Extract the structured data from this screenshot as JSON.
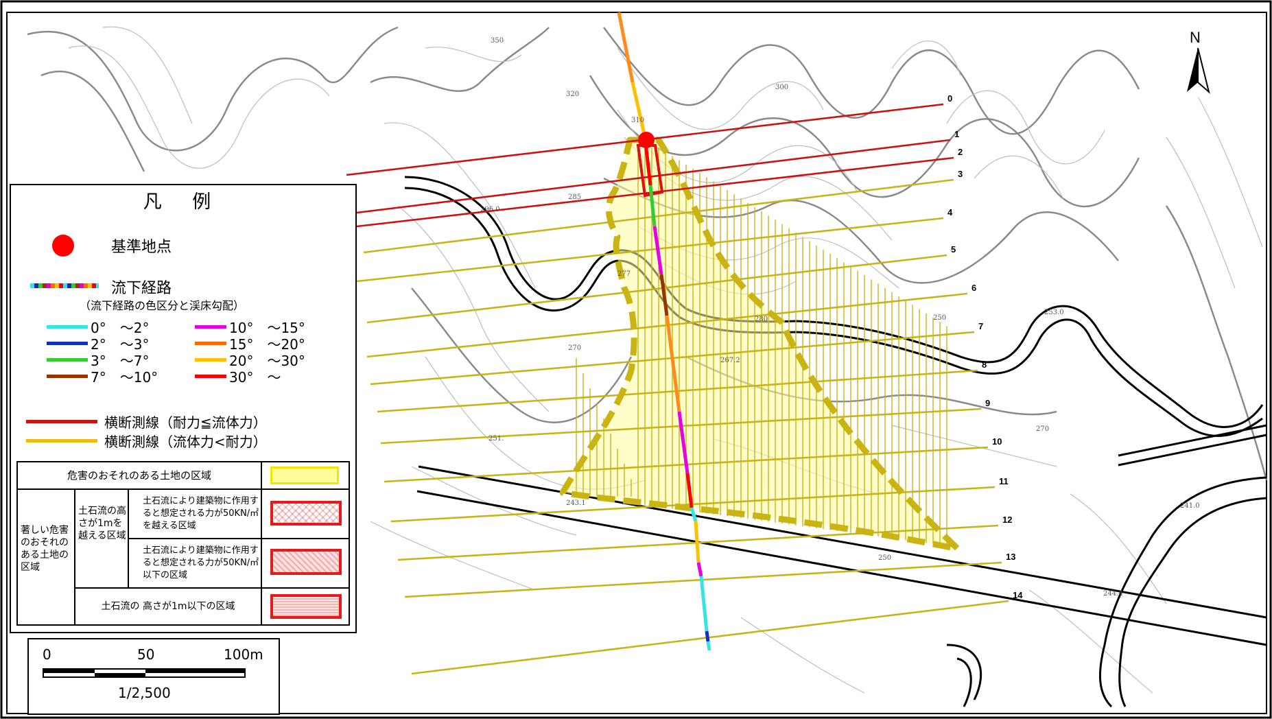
{
  "legend": {
    "title": "凡 例",
    "base_point": "基準地点",
    "flow_path": "流下経路",
    "flow_path_note": "（流下経路の色区分と渓床勾配）",
    "gradients": [
      {
        "label": "0°　～2°",
        "color": "#33e5e5"
      },
      {
        "label": "2°　～3°",
        "color": "#1030c0"
      },
      {
        "label": "3°　～7°",
        "color": "#33cc33"
      },
      {
        "label": "7°　～10°",
        "color": "#993300"
      },
      {
        "label": "10°　～15°",
        "color": "#e600e6"
      },
      {
        "label": "15°　～20°",
        "color": "#ff6a00"
      },
      {
        "label": "20°　～30°",
        "color": "#ffc000"
      },
      {
        "label": "30°　～",
        "color": "#ff0000"
      }
    ],
    "cross_section_red": "横断測線（耐力≦流体力）",
    "cross_section_yellow": "横断測線（流体力<耐力）",
    "table": {
      "hazard_area": "危害のおそれのある土地の区域",
      "severe_area": "著しい危害のおそれのある土地の区域",
      "over_1m": "土石流の高さが1mを越える区域",
      "force_over": "土石流により建築物に作用すると想定される力が50KN/㎡を越える区域",
      "force_under": "土石流により建築物に作用すると想定される力が50KN/㎡以下の区域",
      "under_1m": "土石流の 高さが1m以下の区域"
    }
  },
  "scale": {
    "left": "0",
    "mid": "50",
    "right": "100m",
    "ratio": "1/2,500"
  },
  "north": "N",
  "section_numbers": [
    "0",
    "1",
    "2",
    "3",
    "4",
    "5",
    "6",
    "7",
    "8",
    "9",
    "10",
    "11",
    "12",
    "13",
    "14"
  ],
  "contour_labels": [
    "350",
    "320",
    "310",
    "300",
    "296.0",
    "285",
    "277",
    "280",
    "270",
    "267.2",
    "253.0",
    "250",
    "270",
    "251.",
    "243.1",
    "250",
    "244.4",
    "241.0"
  ],
  "colors": {
    "red_line": "#cc1111",
    "yellow_line": "#c8b418",
    "hazard_fill": "#fffb9c",
    "hazard_border": "#c9b414"
  }
}
